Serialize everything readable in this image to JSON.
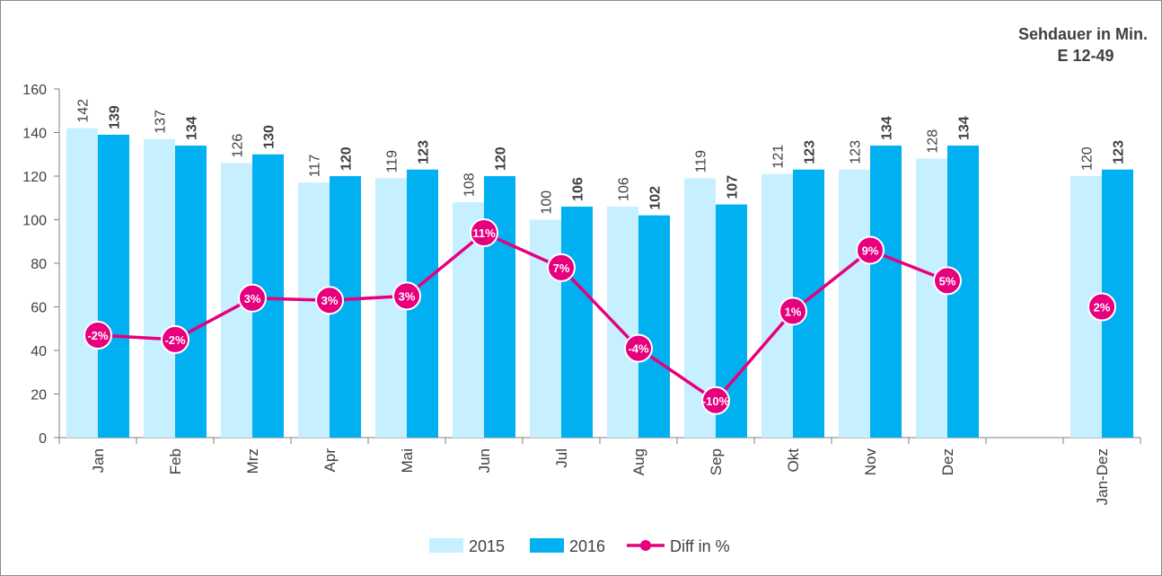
{
  "annotation": {
    "line1": "Sehdauer in Min.",
    "line2": "E 12-49"
  },
  "colors": {
    "s2015": "#c6efff",
    "s2016": "#00b0f0",
    "diff": "#e6007e",
    "axis": "#7f7f7f",
    "text": "#404040"
  },
  "chart_data": {
    "type": "bar",
    "categories": [
      "Jan",
      "Feb",
      "Mrz",
      "Apr",
      "Mai",
      "Jun",
      "Jul",
      "Aug",
      "Sep",
      "Okt",
      "Nov",
      "Dez",
      "",
      "Jan-Dez"
    ],
    "ylim": [
      0,
      160
    ],
    "yticks": [
      0,
      20,
      40,
      60,
      80,
      100,
      120,
      140,
      160
    ],
    "grid": false,
    "legend_position": "bottom",
    "series": [
      {
        "name": "2015",
        "type": "bar",
        "values": [
          142,
          137,
          126,
          117,
          119,
          108,
          100,
          106,
          119,
          121,
          123,
          128,
          null,
          120
        ]
      },
      {
        "name": "2016",
        "type": "bar",
        "values": [
          139,
          134,
          130,
          120,
          123,
          120,
          106,
          102,
          107,
          123,
          134,
          134,
          null,
          123
        ]
      },
      {
        "name": "Diff in %",
        "type": "line",
        "values": [
          47,
          45,
          64,
          63,
          65,
          94,
          78,
          41,
          17,
          58,
          86,
          72,
          null,
          60
        ],
        "labels": [
          "-2%",
          "-2%",
          "3%",
          "3%",
          "3%",
          "11%",
          "7%",
          "-4%",
          "-10%",
          "1%",
          "9%",
          "5%",
          null,
          "2%"
        ]
      }
    ]
  }
}
